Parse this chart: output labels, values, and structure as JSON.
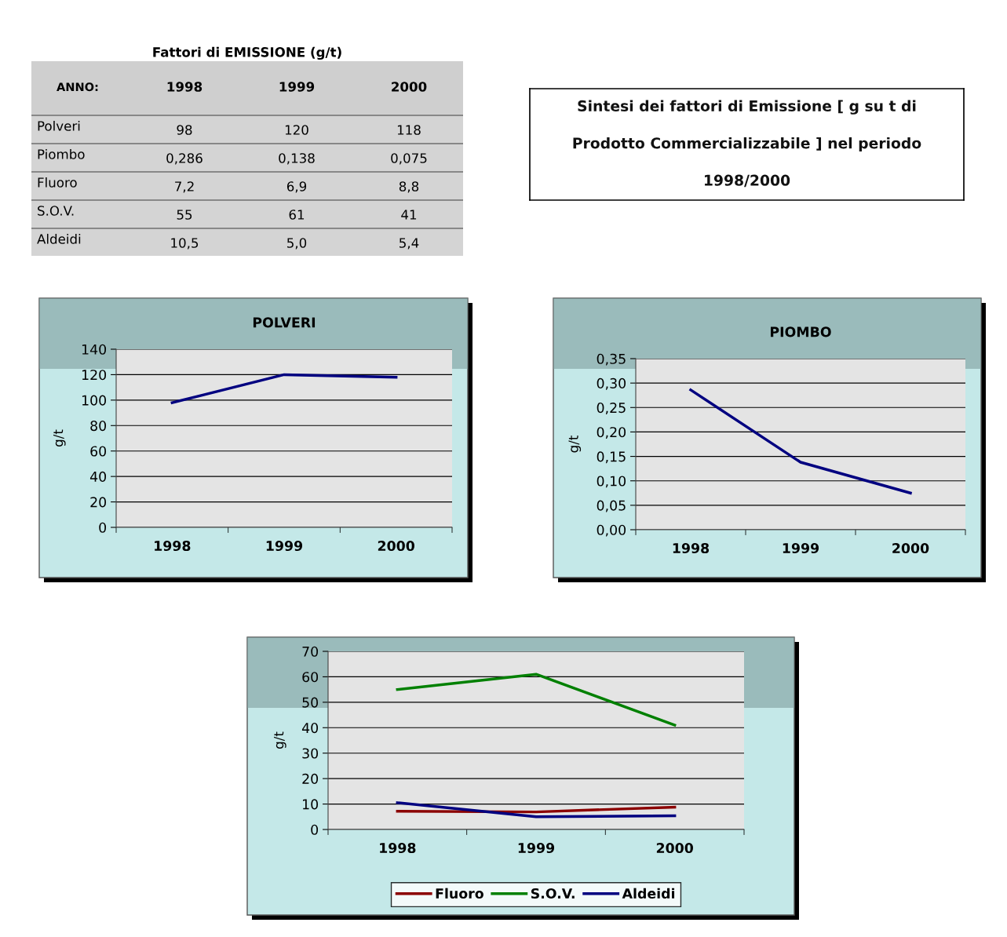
{
  "chart_data": [
    {
      "type": "other",
      "title": "Fattori di EMISSIONE (g/t)",
      "annotations": [
        "ANNO:"
      ],
      "categories": [
        "1998",
        "1999",
        "2000"
      ],
      "y_categories": [
        "Polveri",
        "Piombo",
        "Fluoro",
        "S.O.V.",
        "Aldeidi"
      ],
      "cell_labels": [
        [
          "98",
          "120",
          "118"
        ],
        [
          "0,286",
          "0,138",
          "0,075"
        ],
        [
          "7,2",
          "6,9",
          "8,8"
        ],
        [
          "55",
          "61",
          "41"
        ],
        [
          "10,5",
          "5,0",
          "5,4"
        ]
      ]
    },
    {
      "type": "other",
      "annotations": [
        "Sintesi dei fattori di Emissione [ g su t di",
        "Prodotto Commercializzabile ] nel periodo",
        "1998/2000"
      ]
    },
    {
      "type": "line",
      "title": "POLVERI",
      "ylabel": "g/t",
      "categories": [
        "1998",
        "1999",
        "2000"
      ],
      "series": [
        {
          "color": "#000080",
          "values": [
            98,
            120,
            118
          ]
        }
      ],
      "ylim": [
        0,
        140
      ],
      "yticks": [
        0,
        20,
        40,
        60,
        80,
        100,
        120,
        140
      ],
      "grid": "y"
    },
    {
      "type": "line",
      "title": "PIOMBO",
      "ylabel": "g/t",
      "categories": [
        "1998",
        "1999",
        "2000"
      ],
      "series": [
        {
          "color": "#000080",
          "values": [
            0.286,
            0.138,
            0.075
          ]
        }
      ],
      "ylim": [
        0,
        0.35
      ],
      "yticks": [
        {
          "value": 0,
          "label": "0,00"
        },
        {
          "value": 0.05,
          "label": "0,05"
        },
        {
          "value": 0.1,
          "label": "0,10"
        },
        {
          "value": 0.15,
          "label": "0,15"
        },
        {
          "value": 0.2,
          "label": "0,20"
        },
        {
          "value": 0.25,
          "label": "0,25"
        },
        {
          "value": 0.3,
          "label": "0,30"
        },
        {
          "value": 0.35,
          "label": "0,35"
        }
      ],
      "grid": "y"
    },
    {
      "type": "line",
      "ylabel": "g/t",
      "categories": [
        "1998",
        "1999",
        "2000"
      ],
      "series": [
        {
          "name": "Fluoro",
          "color": "#8b0000",
          "values": [
            7.2,
            6.9,
            8.8
          ]
        },
        {
          "name": "S.O.V.",
          "color": "#008000",
          "values": [
            55,
            61,
            41
          ]
        },
        {
          "name": "Aldeidi",
          "color": "#000080",
          "values": [
            10.5,
            5.0,
            5.4
          ]
        }
      ],
      "ylim": [
        0,
        70
      ],
      "yticks": [
        0,
        10,
        20,
        30,
        40,
        50,
        60,
        70
      ],
      "grid": "y",
      "legend": "bottom"
    }
  ]
}
